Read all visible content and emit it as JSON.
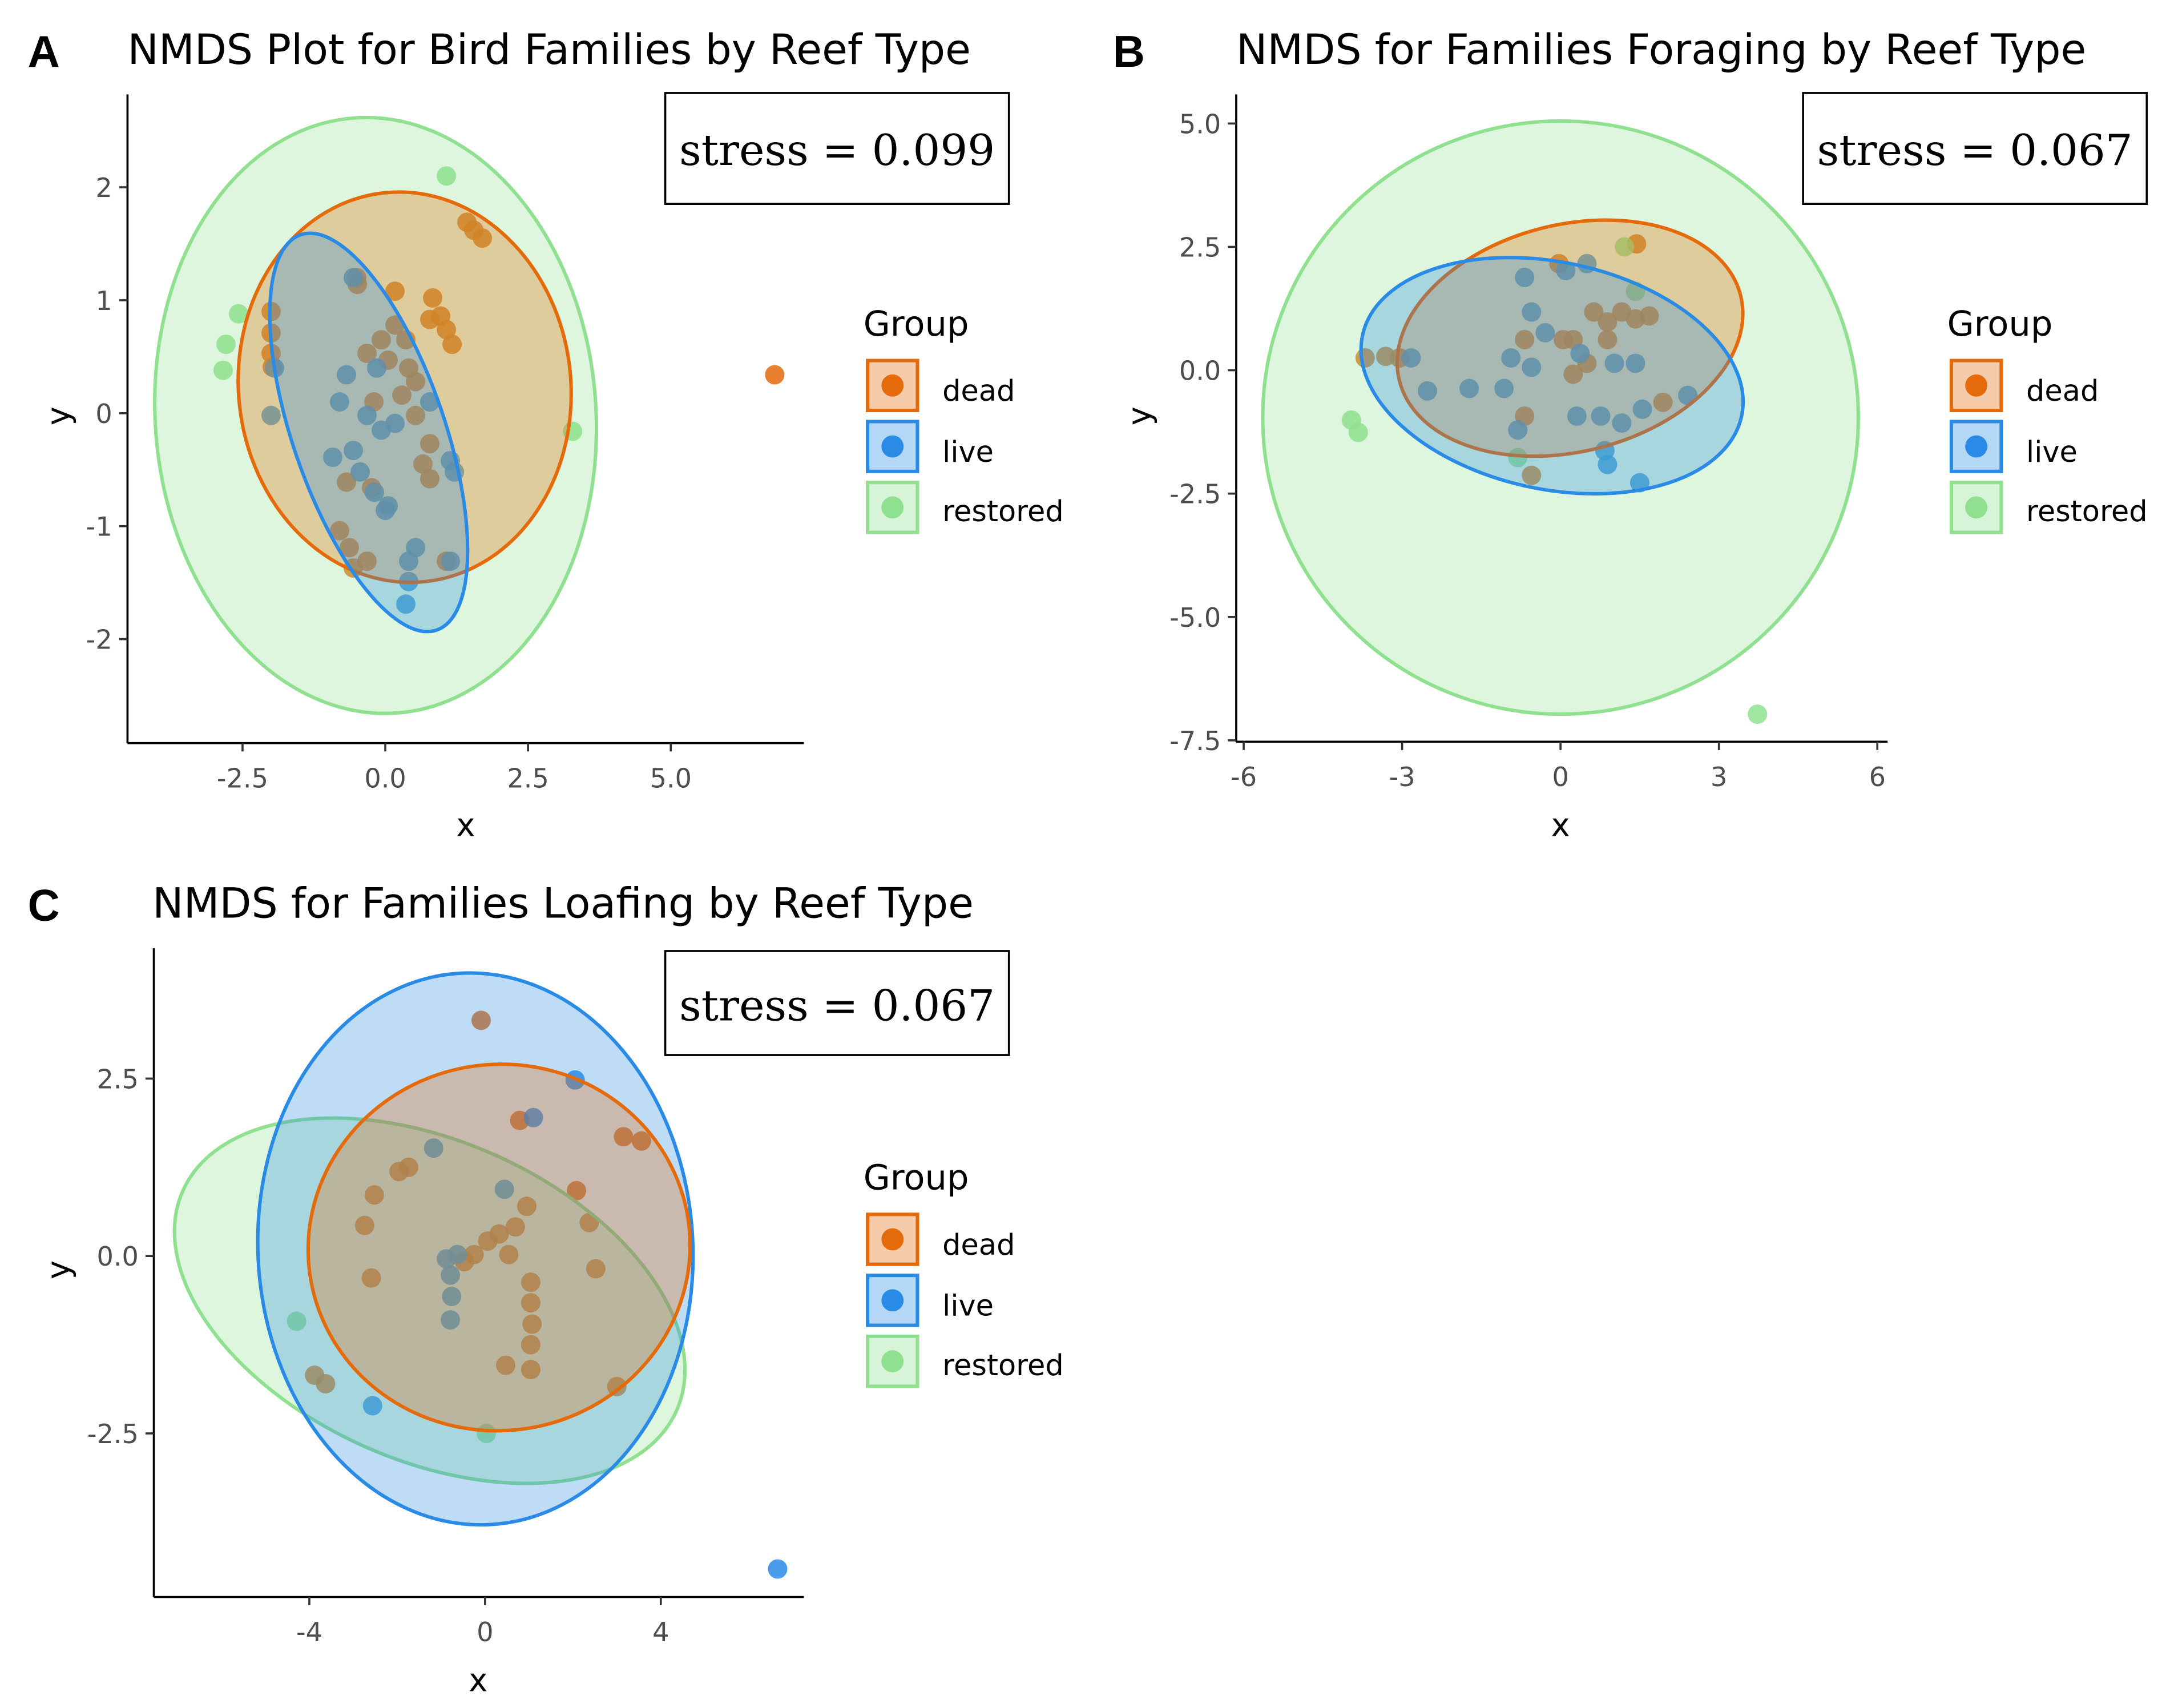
{
  "colors": {
    "dead": "#e56a0a",
    "live": "#2a8be6",
    "restored": "#8fe08f"
  },
  "chart_data": [
    {
      "panel": "A",
      "type": "scatter",
      "title": "NMDS Plot for Bird Families by Reef Type",
      "xlabel": "x",
      "ylabel": "y",
      "xlim": [
        -4.5,
        7.3
      ],
      "ylim": [
        -2.9,
        2.8
      ],
      "xticks": [
        -2.5,
        0,
        2.5,
        5
      ],
      "xtick_labels": [
        "-2.5",
        "0.0",
        "2.5",
        "5.0"
      ],
      "yticks": [
        2,
        1,
        0,
        -1,
        -2
      ],
      "ytick_labels": [
        "2",
        "1",
        "0",
        "-1",
        "-2"
      ],
      "stress": "stress = 0.099",
      "legend": {
        "title": "Group",
        "items": [
          "dead",
          "live",
          "restored"
        ]
      },
      "series": [
        {
          "name": "dead",
          "points": [
            [
              6.82,
              0.34
            ],
            [
              1.43,
              1.69
            ],
            [
              1.55,
              1.62
            ],
            [
              1.7,
              1.55
            ],
            [
              -0.49,
              1.14
            ],
            [
              -0.5,
              1.2
            ],
            [
              -2.0,
              0.9
            ],
            [
              -2.0,
              0.71
            ],
            [
              -2.0,
              0.53
            ],
            [
              -1.98,
              0.41
            ],
            [
              0.17,
              1.08
            ],
            [
              0.83,
              1.02
            ],
            [
              0.97,
              0.86
            ],
            [
              1.07,
              0.74
            ],
            [
              1.17,
              0.61
            ],
            [
              0.78,
              0.83
            ],
            [
              -0.32,
              0.53
            ],
            [
              0.05,
              0.47
            ],
            [
              0.41,
              0.4
            ],
            [
              0.53,
              0.28
            ],
            [
              0.29,
              0.16
            ],
            [
              -0.2,
              0.1
            ],
            [
              0.53,
              -0.02
            ],
            [
              0.78,
              -0.27
            ],
            [
              0.66,
              -0.45
            ],
            [
              0.78,
              -0.58
            ],
            [
              -0.68,
              -0.61
            ],
            [
              -0.24,
              -0.66
            ],
            [
              -0.8,
              -1.04
            ],
            [
              -0.63,
              -1.19
            ],
            [
              -0.32,
              -1.31
            ],
            [
              -0.56,
              -1.37
            ],
            [
              1.07,
              -1.31
            ],
            [
              0.17,
              0.78
            ],
            [
              -0.07,
              0.65
            ],
            [
              0.36,
              0.65
            ]
          ]
        },
        {
          "name": "live",
          "points": [
            [
              0.36,
              -1.69
            ],
            [
              0.41,
              -1.49
            ],
            [
              -0.56,
              1.2
            ],
            [
              -1.94,
              0.4
            ],
            [
              -2.0,
              -0.02
            ],
            [
              -0.8,
              0.1
            ],
            [
              -0.92,
              -0.39
            ],
            [
              -0.56,
              -0.33
            ],
            [
              -0.44,
              -0.52
            ],
            [
              -0.19,
              -0.7
            ],
            [
              0.05,
              -0.82
            ],
            [
              0.0,
              -0.86
            ],
            [
              -0.32,
              -0.02
            ],
            [
              -0.07,
              -0.15
            ],
            [
              0.17,
              -0.09
            ],
            [
              0.53,
              -1.19
            ],
            [
              0.41,
              -1.31
            ],
            [
              1.14,
              -1.31
            ],
            [
              1.21,
              -0.52
            ],
            [
              1.14,
              -0.42
            ],
            [
              -0.68,
              0.34
            ],
            [
              -0.15,
              0.4
            ],
            [
              0.78,
              0.1
            ]
          ]
        },
        {
          "name": "restored",
          "points": [
            [
              1.07,
              2.1
            ],
            [
              -2.57,
              0.88
            ],
            [
              -2.79,
              0.61
            ],
            [
              -2.84,
              0.38
            ],
            [
              3.28,
              -0.16
            ]
          ]
        }
      ],
      "ellipses": [
        {
          "group": "restored",
          "cx": -0.17,
          "cy": -0.02,
          "rx": 3.86,
          "ry": 2.64,
          "angle": -4
        },
        {
          "group": "dead",
          "cx": 0.34,
          "cy": 0.23,
          "rx": 2.91,
          "ry": 1.73,
          "angle": -6
        },
        {
          "group": "live",
          "cx": -0.29,
          "cy": -0.17,
          "rx": 1.33,
          "ry": 1.85,
          "angle": -19
        }
      ]
    },
    {
      "panel": "B",
      "type": "scatter",
      "title": "NMDS for Families Foraging by Reef Type",
      "xlabel": "x",
      "ylabel": "y",
      "xlim": [
        -6.1,
        6.2
      ],
      "ylim": [
        -7.5,
        5.6
      ],
      "xticks": [
        -6,
        -3,
        0,
        3,
        6
      ],
      "xtick_labels": [
        "-6",
        "-3",
        "0",
        "3",
        "6"
      ],
      "yticks": [
        5,
        2.5,
        0,
        -2.5,
        -5,
        -7.5
      ],
      "ytick_labels": [
        "5.0",
        "2.5",
        "0.0",
        "-2.5",
        "-5.0",
        "-7.5"
      ],
      "stress": "stress = 0.067",
      "legend": {
        "title": "Group",
        "items": [
          "dead",
          "live",
          "restored"
        ]
      },
      "series": [
        {
          "name": "dead",
          "points": [
            [
              1.44,
              2.56
            ],
            [
              -0.03,
              2.16
            ],
            [
              0.63,
              1.18
            ],
            [
              0.89,
              0.98
            ],
            [
              1.16,
              1.18
            ],
            [
              1.42,
              1.04
            ],
            [
              1.68,
              1.1
            ],
            [
              0.24,
              0.62
            ],
            [
              0.05,
              0.62
            ],
            [
              -0.68,
              0.62
            ],
            [
              0.5,
              0.14
            ],
            [
              -3.7,
              0.25
            ],
            [
              -3.31,
              0.28
            ],
            [
              -3.05,
              0.25
            ],
            [
              1.94,
              -0.65
            ],
            [
              -0.68,
              -0.93
            ],
            [
              -0.55,
              -2.13
            ],
            [
              0.24,
              -0.08
            ],
            [
              0.89,
              0.62
            ]
          ]
        },
        {
          "name": "live",
          "points": [
            [
              1.5,
              -2.28
            ],
            [
              0.89,
              -1.91
            ],
            [
              0.84,
              -1.63
            ],
            [
              -0.68,
              1.88
            ],
            [
              0.5,
              2.16
            ],
            [
              0.1,
              2.02
            ],
            [
              -0.55,
              1.18
            ],
            [
              -0.29,
              0.76
            ],
            [
              -0.94,
              0.25
            ],
            [
              -1.73,
              -0.37
            ],
            [
              -2.52,
              -0.42
            ],
            [
              -2.83,
              0.25
            ],
            [
              -1.07,
              -0.37
            ],
            [
              -0.55,
              0.06
            ],
            [
              0.37,
              0.34
            ],
            [
              1.02,
              0.14
            ],
            [
              1.42,
              0.14
            ],
            [
              0.31,
              -0.93
            ],
            [
              0.76,
              -0.93
            ],
            [
              1.16,
              -1.07
            ],
            [
              1.55,
              -0.79
            ],
            [
              2.41,
              -0.51
            ],
            [
              -0.81,
              -1.21
            ]
          ]
        },
        {
          "name": "restored",
          "points": [
            [
              3.73,
              -6.97
            ],
            [
              -3.96,
              -1.01
            ],
            [
              -3.83,
              -1.26
            ],
            [
              1.21,
              2.5
            ],
            [
              1.42,
              1.6
            ],
            [
              -0.81,
              -1.77
            ]
          ]
        }
      ],
      "ellipses": [
        {
          "group": "restored",
          "cx": 0.0,
          "cy": -0.96,
          "rx": 5.64,
          "ry": 6.01,
          "angle": 0
        },
        {
          "group": "dead",
          "cx": 0.18,
          "cy": 0.65,
          "rx": 3.33,
          "ry": 2.3,
          "angle": -14
        },
        {
          "group": "live",
          "cx": -0.16,
          "cy": -0.11,
          "rx": 3.67,
          "ry": 2.3,
          "angle": 12
        }
      ]
    },
    {
      "panel": "C",
      "type": "scatter",
      "title": "NMDS for Families Loafing by Reef Type",
      "xlabel": "x",
      "ylabel": "y",
      "xlim": [
        -7.5,
        7.3
      ],
      "ylim": [
        -4.8,
        4.3
      ],
      "xticks": [
        -4,
        0,
        4
      ],
      "xtick_labels": [
        "-4",
        "0",
        "4"
      ],
      "yticks": [
        2.5,
        0,
        -2.5
      ],
      "ytick_labels": [
        "2.5",
        "0.0",
        "-2.5"
      ],
      "stress": "stress = 0.067",
      "legend": {
        "title": "Group",
        "items": [
          "dead",
          "live",
          "restored"
        ]
      },
      "series": [
        {
          "name": "dead",
          "points": [
            [
              -0.09,
              3.32
            ],
            [
              0.79,
              1.91
            ],
            [
              3.15,
              1.68
            ],
            [
              3.56,
              1.62
            ],
            [
              2.08,
              0.92
            ],
            [
              -2.52,
              0.86
            ],
            [
              -2.74,
              0.43
            ],
            [
              -2.59,
              -0.31
            ],
            [
              -3.88,
              -1.68
            ],
            [
              -3.63,
              -1.8
            ],
            [
              3.0,
              -1.84
            ],
            [
              2.52,
              -0.18
            ],
            [
              0.47,
              -1.54
            ],
            [
              1.04,
              -1.6
            ],
            [
              1.04,
              -1.25
            ],
            [
              1.07,
              -0.96
            ],
            [
              1.04,
              -0.66
            ],
            [
              1.04,
              -0.37
            ],
            [
              0.95,
              0.7
            ],
            [
              0.69,
              0.41
            ],
            [
              0.32,
              0.31
            ],
            [
              0.06,
              0.21
            ],
            [
              -0.25,
              0.02
            ],
            [
              -0.47,
              -0.08
            ],
            [
              0.54,
              0.02
            ],
            [
              -1.96,
              1.19
            ],
            [
              -1.74,
              1.25
            ],
            [
              2.37,
              0.47
            ]
          ]
        },
        {
          "name": "live",
          "points": [
            [
              6.66,
              -4.41
            ],
            [
              1.1,
              1.95
            ],
            [
              2.05,
              2.48
            ],
            [
              -1.17,
              1.52
            ],
            [
              0.44,
              0.94
            ],
            [
              -0.63,
              0.02
            ],
            [
              -0.88,
              -0.04
            ],
            [
              -0.79,
              -0.27
            ],
            [
              -0.76,
              -0.57
            ],
            [
              -0.79,
              -0.9
            ],
            [
              -2.56,
              -2.11
            ]
          ]
        },
        {
          "name": "restored",
          "points": [
            [
              -4.29,
              -0.92
            ],
            [
              0.03,
              -2.5
            ]
          ]
        }
      ],
      "ellipses": [
        {
          "group": "restored",
          "cx": -1.26,
          "cy": -0.63,
          "rx": 6.15,
          "ry": 2.25,
          "angle": 24
        },
        {
          "group": "live",
          "cx": -0.22,
          "cy": 0.1,
          "rx": 4.95,
          "ry": 3.89,
          "angle": -3
        },
        {
          "group": "dead",
          "cx": 0.32,
          "cy": 0.12,
          "rx": 4.35,
          "ry": 2.58,
          "angle": -8
        }
      ]
    }
  ]
}
